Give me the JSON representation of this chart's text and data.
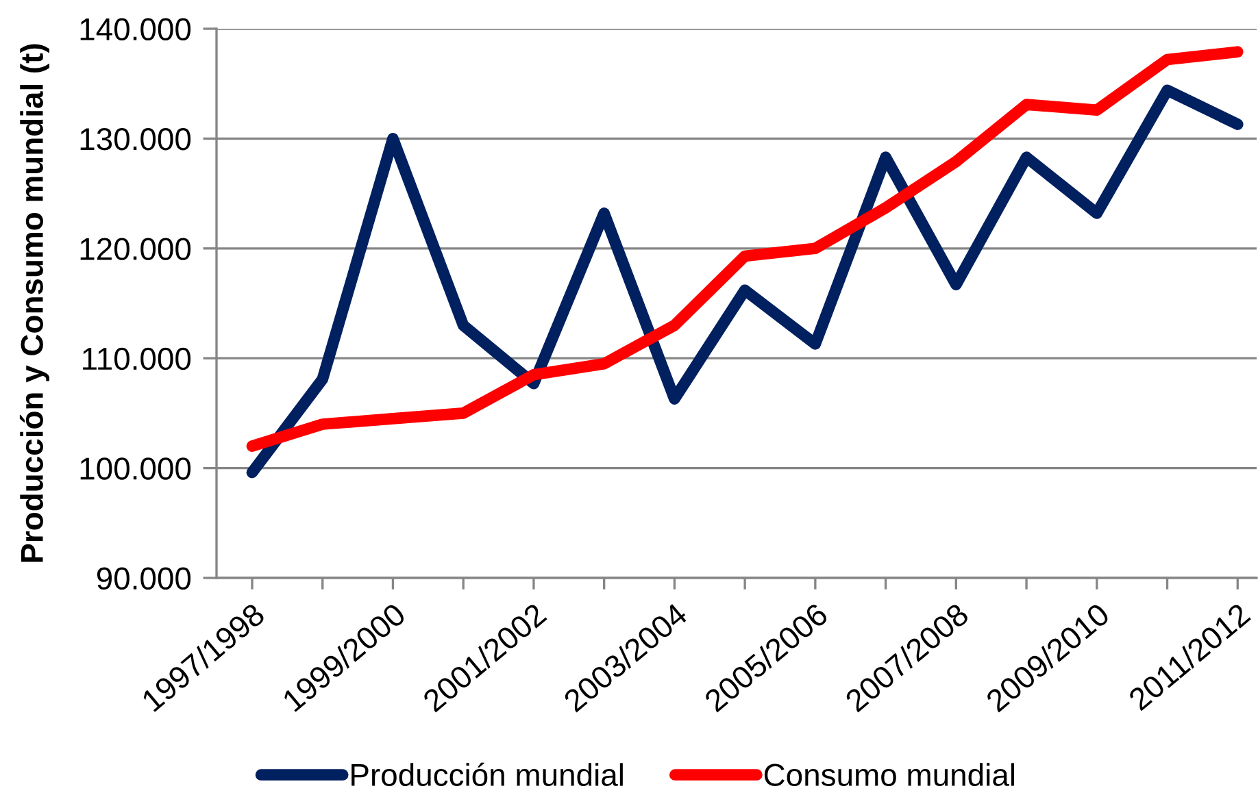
{
  "chart_data": {
    "type": "line",
    "ylabel": "Producción y Consumo mundial (t)",
    "categories": [
      "1997/1998",
      null,
      "1999/2000",
      null,
      "2001/2002",
      null,
      "2003/2004",
      null,
      "2005/2006",
      null,
      "2007/2008",
      null,
      "2009/2010",
      null,
      "2011/2012"
    ],
    "series": [
      {
        "name": "Producción mundial",
        "color": "#002060",
        "values": [
          99600,
          108100,
          130000,
          113000,
          107700,
          123200,
          106300,
          116200,
          111300,
          128300,
          116700,
          128300,
          123200,
          134400,
          131300
        ]
      },
      {
        "name": "Consumo mundial",
        "color": "#ff0000",
        "values": [
          102000,
          104000,
          104500,
          105000,
          108500,
          109500,
          113000,
          119300,
          120000,
          123700,
          127900,
          133100,
          132600,
          137200,
          137900
        ]
      }
    ],
    "ylim": [
      90000,
      140000
    ],
    "yticks": [
      {
        "value": 90000,
        "label": "90.000"
      },
      {
        "value": 100000,
        "label": "100.000"
      },
      {
        "value": 110000,
        "label": "110.000"
      },
      {
        "value": 120000,
        "label": "120.000"
      },
      {
        "value": 130000,
        "label": "130.000"
      },
      {
        "value": 140000,
        "label": "140.000"
      }
    ],
    "grid": "y",
    "legend": "bottom",
    "line_style": "solid"
  }
}
